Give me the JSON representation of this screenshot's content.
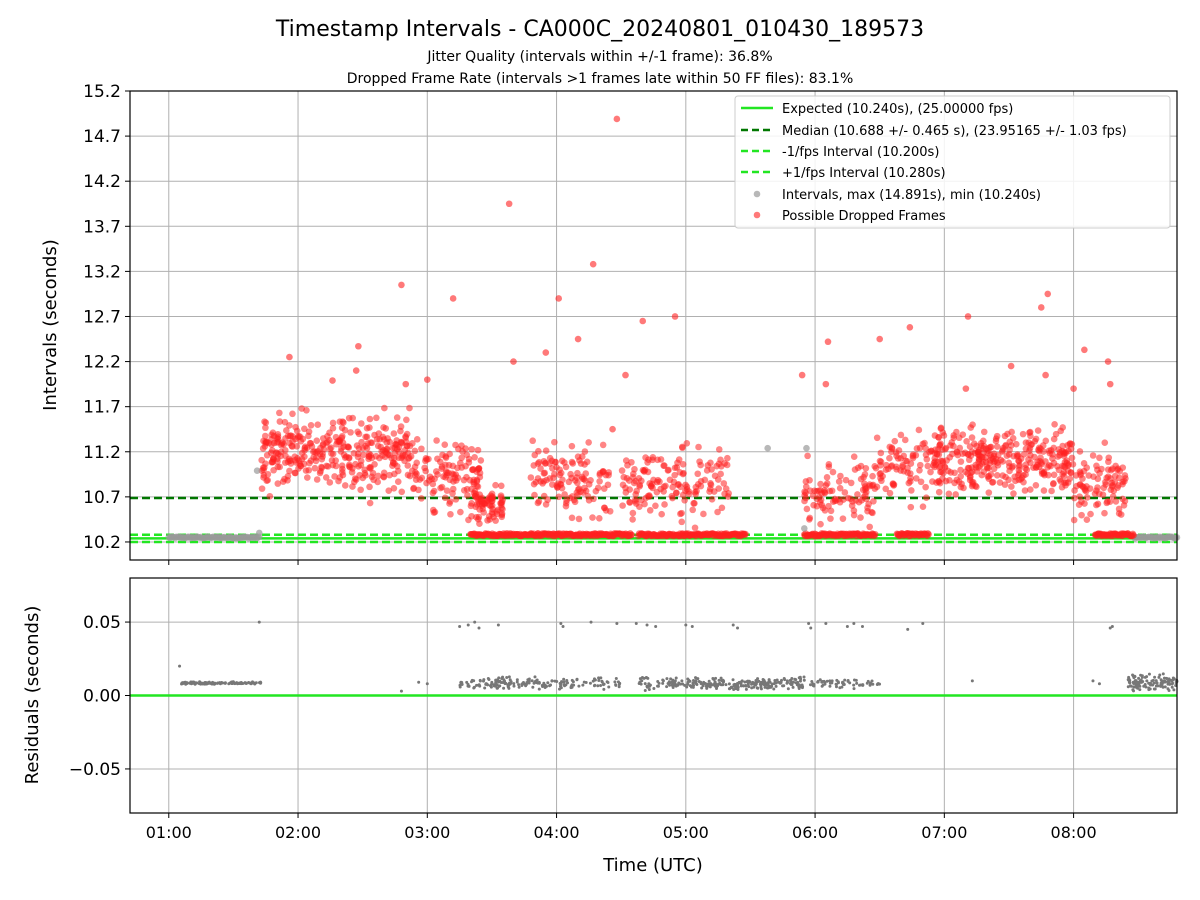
{
  "title": "Timestamp Intervals - CA000C_20240801_010430_189573",
  "subtitle_lines": [
    "Jitter Quality (intervals within +/-1 frame): 36.8%",
    "Dropped Frame Rate (intervals >1 frames late within 50 FF files): 83.1%"
  ],
  "colors": {
    "expected": "#22e622",
    "median": "#007700",
    "interval_band": "#22e622",
    "intervals": "#9a9a9a",
    "dropped": "#ff2020",
    "residuals": "#777777"
  },
  "chart_data": [
    {
      "type": "scatter",
      "ylabel": "Intervals (seconds)",
      "xlim": [
        "00:42",
        "08:48"
      ],
      "ylim": [
        10.0,
        15.2
      ],
      "yticks": [
        "10.2",
        "10.7",
        "11.2",
        "11.7",
        "12.2",
        "12.7",
        "13.2",
        "13.7",
        "14.2",
        "14.7",
        "15.2"
      ],
      "grid": true,
      "legend_position": "top-right",
      "lines": [
        {
          "name": "Expected (10.240s), (25.00000 fps)",
          "y": 10.24,
          "style": "solid"
        },
        {
          "name": "Median (10.688 +/- 0.465 s), (23.95165 +/- 1.03 fps)",
          "y": 10.688,
          "style": "dashed"
        },
        {
          "name": "-1/fps Interval (10.200s)",
          "y": 10.2,
          "style": "dashed"
        },
        {
          "name": "+1/fps Interval (10.280s)",
          "y": 10.28,
          "style": "dashed"
        }
      ],
      "series": [
        {
          "name": "Intervals, max (14.891s), min (10.240s)"
        },
        {
          "name": "Possible Dropped Frames"
        }
      ],
      "intervals_baseline": {
        "y": 10.25,
        "x_ranges": [
          [
            "01:00",
            "01:42"
          ],
          [
            "08:28",
            "08:48"
          ]
        ]
      },
      "dropped_baseline": {
        "y": 10.28,
        "x_ranges": [
          [
            "03:20",
            "04:35"
          ],
          [
            "04:38",
            "05:28"
          ],
          [
            "05:55",
            "06:28"
          ],
          [
            "06:38",
            "06:53"
          ],
          [
            "08:10",
            "08:28"
          ]
        ]
      },
      "dropped_clusters": [
        {
          "x_range": [
            "01:43",
            "02:52"
          ],
          "y_range": [
            10.6,
            11.8
          ],
          "count": 350
        },
        {
          "x_range": [
            "02:52",
            "03:25"
          ],
          "y_range": [
            10.35,
            11.5
          ],
          "count": 120
        },
        {
          "x_range": [
            "03:20",
            "03:35"
          ],
          "y_range": [
            10.3,
            10.9
          ],
          "count": 70
        },
        {
          "x_range": [
            "03:48",
            "04:25"
          ],
          "y_range": [
            10.3,
            11.5
          ],
          "count": 120
        },
        {
          "x_range": [
            "04:30",
            "05:20"
          ],
          "y_range": [
            10.3,
            11.4
          ],
          "count": 150
        },
        {
          "x_range": [
            "05:55",
            "06:28"
          ],
          "y_range": [
            10.3,
            11.2
          ],
          "count": 100
        },
        {
          "x_range": [
            "06:28",
            "06:55"
          ],
          "y_range": [
            10.5,
            11.6
          ],
          "count": 80
        },
        {
          "x_range": [
            "06:55",
            "08:00"
          ],
          "y_range": [
            10.6,
            11.6
          ],
          "count": 330
        },
        {
          "x_range": [
            "08:00",
            "08:25"
          ],
          "y_range": [
            10.3,
            11.4
          ],
          "count": 90
        }
      ],
      "dropped_outliers": [
        {
          "x": "01:56",
          "y": 12.25
        },
        {
          "x": "02:16",
          "y": 11.99
        },
        {
          "x": "02:27",
          "y": 12.1
        },
        {
          "x": "02:28",
          "y": 12.37
        },
        {
          "x": "02:48",
          "y": 13.05
        },
        {
          "x": "02:50",
          "y": 11.95
        },
        {
          "x": "03:00",
          "y": 12.0
        },
        {
          "x": "03:12",
          "y": 12.9
        },
        {
          "x": "03:38",
          "y": 13.95
        },
        {
          "x": "03:40",
          "y": 12.2
        },
        {
          "x": "03:55",
          "y": 12.3
        },
        {
          "x": "04:01",
          "y": 12.9
        },
        {
          "x": "04:10",
          "y": 12.45
        },
        {
          "x": "04:17",
          "y": 13.28
        },
        {
          "x": "04:26",
          "y": 11.45
        },
        {
          "x": "04:28",
          "y": 14.89
        },
        {
          "x": "04:32",
          "y": 12.05
        },
        {
          "x": "04:40",
          "y": 12.65
        },
        {
          "x": "04:55",
          "y": 12.7
        },
        {
          "x": "05:54",
          "y": 12.05
        },
        {
          "x": "06:05",
          "y": 11.95
        },
        {
          "x": "06:06",
          "y": 12.42
        },
        {
          "x": "06:30",
          "y": 12.45
        },
        {
          "x": "06:44",
          "y": 12.58
        },
        {
          "x": "07:10",
          "y": 11.9
        },
        {
          "x": "07:11",
          "y": 12.7
        },
        {
          "x": "07:31",
          "y": 12.15
        },
        {
          "x": "07:45",
          "y": 12.8
        },
        {
          "x": "07:47",
          "y": 12.05
        },
        {
          "x": "07:48",
          "y": 12.95
        },
        {
          "x": "08:00",
          "y": 11.9
        },
        {
          "x": "08:05",
          "y": 12.33
        },
        {
          "x": "08:16",
          "y": 12.2
        },
        {
          "x": "08:17",
          "y": 11.95
        }
      ],
      "interval_outliers": [
        {
          "x": "01:41",
          "y": 10.99
        },
        {
          "x": "01:42",
          "y": 10.3
        },
        {
          "x": "05:38",
          "y": 11.24
        },
        {
          "x": "05:56",
          "y": 11.24
        },
        {
          "x": "05:55",
          "y": 10.35
        }
      ]
    },
    {
      "type": "scatter",
      "xlabel": "Time (UTC)",
      "ylabel": "Residuals (seconds)",
      "xlim": [
        "00:42",
        "08:48"
      ],
      "ylim": [
        -0.08,
        0.08
      ],
      "xticks": [
        "01:00",
        "02:00",
        "03:00",
        "04:00",
        "05:00",
        "06:00",
        "07:00",
        "08:00"
      ],
      "yticks": [
        "0.05",
        "0.00",
        "−0.05"
      ],
      "grid": true,
      "lines": [
        {
          "y": 0.0,
          "style": "solid"
        }
      ],
      "residual_clusters": [
        {
          "x_range": [
            "01:05",
            "01:43"
          ],
          "y_range": [
            0.0075,
            0.0095
          ],
          "count": 110
        },
        {
          "x_range": [
            "03:15",
            "03:40"
          ],
          "y_range": [
            0.004,
            0.013
          ],
          "count": 60
        },
        {
          "x_range": [
            "03:30",
            "04:30"
          ],
          "y_range": [
            0.004,
            0.013
          ],
          "count": 120
        },
        {
          "x_range": [
            "04:38",
            "05:55"
          ],
          "y_range": [
            0.003,
            0.013
          ],
          "count": 260
        },
        {
          "x_range": [
            "05:55",
            "06:30"
          ],
          "y_range": [
            0.004,
            0.012
          ],
          "count": 60
        },
        {
          "x_range": [
            "08:25",
            "08:48"
          ],
          "y_range": [
            0.003,
            0.015
          ],
          "count": 120
        }
      ],
      "residual_outliers": [
        {
          "x": "01:05",
          "y": 0.02
        },
        {
          "x": "01:42",
          "y": 0.05
        },
        {
          "x": "02:48",
          "y": 0.003
        },
        {
          "x": "02:56",
          "y": 0.009
        },
        {
          "x": "03:00",
          "y": 0.008
        },
        {
          "x": "03:15",
          "y": 0.047
        },
        {
          "x": "03:19",
          "y": 0.048
        },
        {
          "x": "03:22",
          "y": 0.05
        },
        {
          "x": "03:24",
          "y": 0.046
        },
        {
          "x": "03:33",
          "y": 0.048
        },
        {
          "x": "04:02",
          "y": 0.049
        },
        {
          "x": "04:03",
          "y": 0.047
        },
        {
          "x": "04:16",
          "y": 0.05
        },
        {
          "x": "04:28",
          "y": 0.049
        },
        {
          "x": "04:37",
          "y": 0.049
        },
        {
          "x": "04:42",
          "y": 0.048
        },
        {
          "x": "04:46",
          "y": 0.047
        },
        {
          "x": "05:00",
          "y": 0.048
        },
        {
          "x": "05:03",
          "y": 0.047
        },
        {
          "x": "05:22",
          "y": 0.048
        },
        {
          "x": "05:24",
          "y": 0.046
        },
        {
          "x": "05:57",
          "y": 0.049
        },
        {
          "x": "05:58",
          "y": 0.046
        },
        {
          "x": "06:05",
          "y": 0.049
        },
        {
          "x": "06:15",
          "y": 0.047
        },
        {
          "x": "06:18",
          "y": 0.049
        },
        {
          "x": "06:22",
          "y": 0.047
        },
        {
          "x": "06:43",
          "y": 0.045
        },
        {
          "x": "06:50",
          "y": 0.049
        },
        {
          "x": "07:13",
          "y": 0.01
        },
        {
          "x": "08:09",
          "y": 0.01
        },
        {
          "x": "08:12",
          "y": 0.008
        },
        {
          "x": "08:17",
          "y": 0.046
        },
        {
          "x": "08:18",
          "y": 0.047
        },
        {
          "x": "08:34",
          "y": 0.01
        },
        {
          "x": "08:40",
          "y": 0.014
        }
      ]
    }
  ]
}
